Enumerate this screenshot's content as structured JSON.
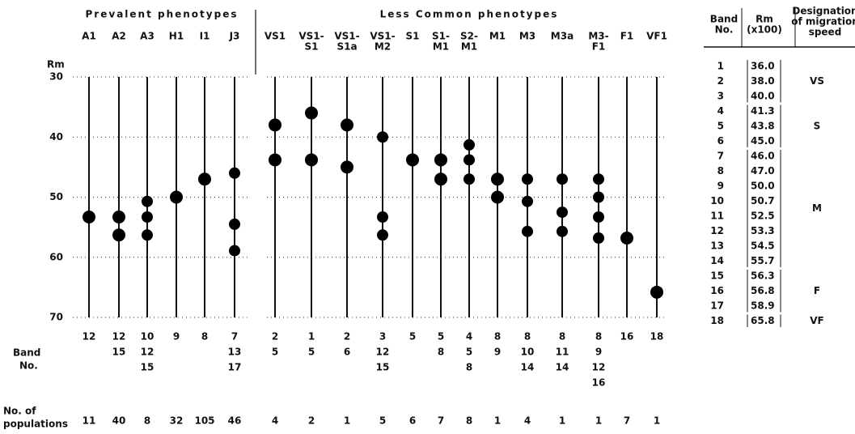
{
  "figure": {
    "group_titles": [
      "Prevalent phenotypes",
      "Less Common phenotypes"
    ],
    "axis": {
      "label": "Rm",
      "ticks": [
        30,
        40,
        50,
        60,
        70
      ]
    },
    "row_labels": {
      "bands": [
        "Band",
        "No."
      ],
      "populations": [
        "No. of",
        "populations"
      ]
    },
    "phenotypes": [
      {
        "name": [
          "A1"
        ],
        "group": 0,
        "bands": [
          12
        ],
        "populations": 11
      },
      {
        "name": [
          "A2"
        ],
        "group": 0,
        "bands": [
          12,
          15
        ],
        "populations": 40
      },
      {
        "name": [
          "A3"
        ],
        "group": 0,
        "bands": [
          10,
          12,
          15
        ],
        "populations": 8
      },
      {
        "name": [
          "H1"
        ],
        "group": 0,
        "bands": [
          9
        ],
        "populations": 32
      },
      {
        "name": [
          "I1"
        ],
        "group": 0,
        "bands": [
          8
        ],
        "populations": 105
      },
      {
        "name": [
          "J3"
        ],
        "group": 0,
        "bands": [
          7,
          13,
          17
        ],
        "populations": 46
      },
      {
        "name": [
          "VS1"
        ],
        "group": 1,
        "bands": [
          2,
          5
        ],
        "populations": 4
      },
      {
        "name": [
          "VS1-",
          "S1"
        ],
        "group": 1,
        "bands": [
          1,
          5
        ],
        "populations": 2
      },
      {
        "name": [
          "VS1-",
          "S1a"
        ],
        "group": 1,
        "bands": [
          2,
          6
        ],
        "populations": 1
      },
      {
        "name": [
          "VS1-",
          "M2"
        ],
        "group": 1,
        "bands": [
          3,
          12,
          15
        ],
        "populations": 5
      },
      {
        "name": [
          "S1"
        ],
        "group": 1,
        "bands": [
          5
        ],
        "populations": 6
      },
      {
        "name": [
          "S1-",
          "M1"
        ],
        "group": 1,
        "bands": [
          5,
          8
        ],
        "populations": 7
      },
      {
        "name": [
          "S2-",
          "M1"
        ],
        "group": 1,
        "bands": [
          4,
          5,
          8
        ],
        "populations": 8
      },
      {
        "name": [
          "M1"
        ],
        "group": 1,
        "bands": [
          8,
          9
        ],
        "populations": 1
      },
      {
        "name": [
          "M3"
        ],
        "group": 1,
        "bands": [
          8,
          10,
          14
        ],
        "populations": 4
      },
      {
        "name": [
          "M3a"
        ],
        "group": 1,
        "bands": [
          8,
          11,
          14
        ],
        "populations": 1
      },
      {
        "name": [
          "M3-",
          "F1"
        ],
        "group": 1,
        "bands": [
          8,
          9,
          12,
          16
        ],
        "populations": 1
      },
      {
        "name": [
          "F1"
        ],
        "group": 1,
        "bands": [
          16
        ],
        "populations": 7
      },
      {
        "name": [
          "VF1"
        ],
        "group": 1,
        "bands": [
          18
        ],
        "populations": 1
      }
    ]
  },
  "table": {
    "headers": [
      [
        "Band",
        "No."
      ],
      [
        "Rm",
        "(x100)"
      ],
      [
        "Designation",
        "of migration",
        "speed"
      ]
    ],
    "groups": [
      {
        "designation": "VS",
        "rows": [
          {
            "band": 1,
            "rm": "36.0"
          },
          {
            "band": 2,
            "rm": "38.0"
          },
          {
            "band": 3,
            "rm": "40.0"
          }
        ]
      },
      {
        "designation": "S",
        "rows": [
          {
            "band": 4,
            "rm": "41.3"
          },
          {
            "band": 5,
            "rm": "43.8"
          },
          {
            "band": 6,
            "rm": "45.0"
          }
        ]
      },
      {
        "designation": "M",
        "rows": [
          {
            "band": 7,
            "rm": "46.0"
          },
          {
            "band": 8,
            "rm": "47.0"
          },
          {
            "band": 9,
            "rm": "50.0"
          },
          {
            "band": 10,
            "rm": "50.7"
          },
          {
            "band": 11,
            "rm": "52.5"
          },
          {
            "band": 12,
            "rm": "53.3"
          },
          {
            "band": 13,
            "rm": "54.5"
          },
          {
            "band": 14,
            "rm": "55.7"
          }
        ]
      },
      {
        "designation": "F",
        "rows": [
          {
            "band": 15,
            "rm": "56.3"
          },
          {
            "band": 16,
            "rm": "56.8"
          },
          {
            "band": 17,
            "rm": "58.9"
          }
        ]
      },
      {
        "designation": "VF",
        "rows": [
          {
            "band": 18,
            "rm": "65.8"
          }
        ]
      }
    ]
  }
}
